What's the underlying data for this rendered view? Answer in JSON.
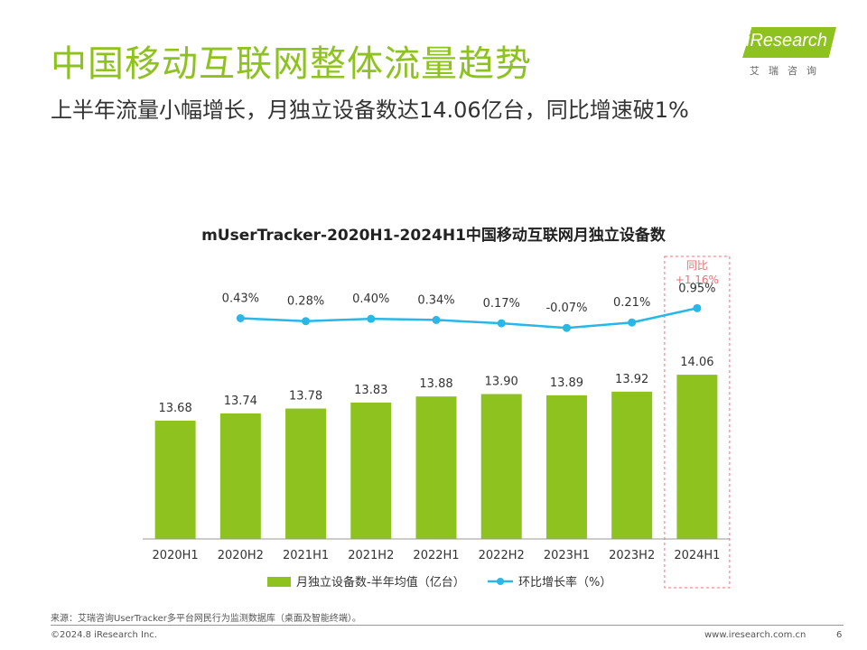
{
  "header": {
    "title": "中国移动互联网整体流量趋势",
    "subtitle": "上半年流量小幅增长，月独立设备数达14.06亿台，同比增速破1%"
  },
  "logo": {
    "name": "iResearch",
    "subtitle": "艾瑞咨询"
  },
  "chart_data": {
    "type": "bar",
    "title": "mUserTracker-2020H1-2024H1中国移动互联网月独立设备数",
    "categories": [
      "2020H1",
      "2020H2",
      "2021H1",
      "2021H2",
      "2022H1",
      "2022H2",
      "2023H1",
      "2023H2",
      "2024H1"
    ],
    "series": [
      {
        "name": "月独立设备数-半年均值（亿台）",
        "type": "bar",
        "values": [
          13.68,
          13.74,
          13.78,
          13.83,
          13.88,
          13.9,
          13.89,
          13.92,
          14.06
        ],
        "labels": [
          "13.68",
          "13.74",
          "13.78",
          "13.83",
          "13.88",
          "13.90",
          "13.89",
          "13.92",
          "14.06"
        ],
        "color": "#8DC21F"
      },
      {
        "name": "环比增长率（%）",
        "type": "line",
        "x": [
          "2020H2",
          "2021H1",
          "2021H2",
          "2022H1",
          "2022H2",
          "2023H1",
          "2023H2",
          "2024H1"
        ],
        "values": [
          0.43,
          0.28,
          0.4,
          0.34,
          0.17,
          -0.07,
          0.21,
          0.95
        ],
        "labels": [
          "0.43%",
          "0.28%",
          "0.40%",
          "0.34%",
          "0.17%",
          "-0.07%",
          "0.21%",
          "0.95%"
        ],
        "color": "#29B6E8"
      }
    ],
    "highlight": {
      "category": "2024H1",
      "label_line1": "同比",
      "label_line2": "+1.16%",
      "color": "#E8727A"
    },
    "legend_position": "bottom"
  },
  "footer": {
    "source": "来源：艾瑞咨询UserTracker多平台网民行为监测数据库（桌面及智能终端）。",
    "copyright": "©2024.8 iResearch Inc.",
    "website": "www.iresearch.com.cn",
    "page": "6"
  }
}
